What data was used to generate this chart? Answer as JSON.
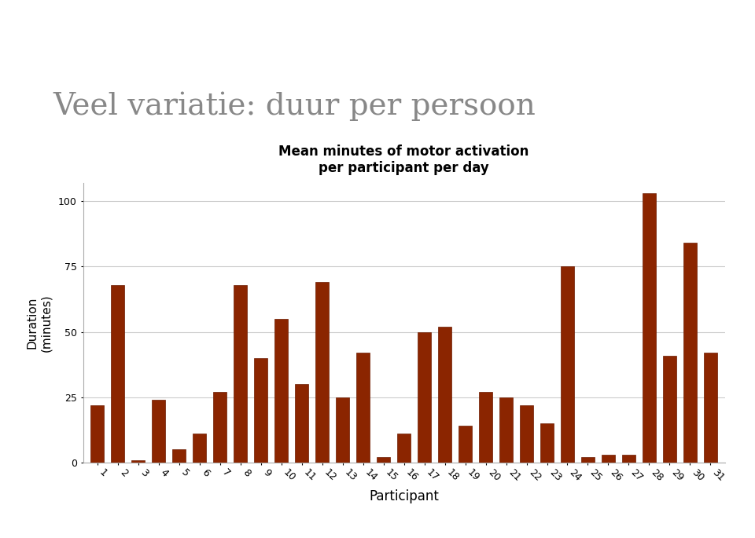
{
  "chart_title": "Mean minutes of motor activation\nper participant per day",
  "xlabel": "Participant",
  "ylabel": "Duration\n(minutes)",
  "slide_title": "Veel variatie: duur per persoon",
  "ylim": [
    0,
    107
  ],
  "yticks": [
    0,
    25,
    50,
    75,
    100
  ],
  "participants": [
    "1",
    "2",
    "3",
    "4",
    "5",
    "6",
    "7",
    "8",
    "9",
    "10",
    "11",
    "12",
    "13",
    "14",
    "15",
    "16",
    "17",
    "18",
    "19",
    "20",
    "21",
    "22",
    "23",
    "24",
    "25",
    "26",
    "27",
    "28",
    "29",
    "30",
    "31"
  ],
  "values": [
    22,
    68,
    1,
    24,
    5,
    11,
    27,
    68,
    40,
    55,
    30,
    69,
    25,
    42,
    2,
    11,
    50,
    52,
    14,
    27,
    25,
    22,
    15,
    75,
    2,
    3,
    3,
    103,
    41,
    84,
    42
  ],
  "bar_color": "#8B2500",
  "bar_edge_color": "#6B1A00",
  "bg_color": "#ffffff",
  "chart_area_color": "#ffffff",
  "grid_color": "#cccccc",
  "slide_title_color": "#888888",
  "chart_title_fontsize": 12,
  "slide_title_fontsize": 28,
  "xlabel_fontsize": 12,
  "ylabel_fontsize": 11,
  "tick_fontsize": 9,
  "stripe_color": "#e0e0e0"
}
